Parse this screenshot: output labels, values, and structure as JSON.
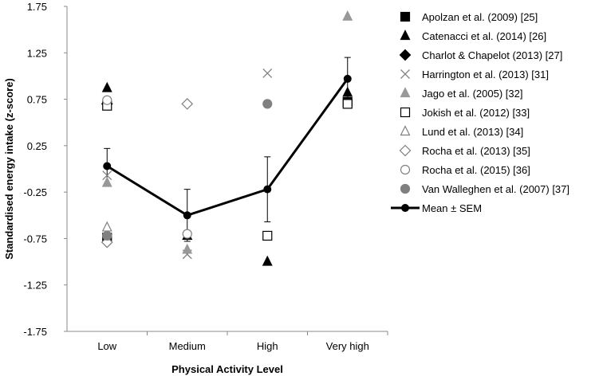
{
  "chart_data": {
    "type": "scatter",
    "xlabel": "Physical Activity Level",
    "ylabel": "Standardised energy intake (z-score)",
    "categories": [
      "Low",
      "Medium",
      "High",
      "Very high"
    ],
    "ylim": [
      -1.75,
      1.75
    ],
    "yticks": [
      1.75,
      1.25,
      0.75,
      0.25,
      -0.25,
      -0.75,
      -1.25,
      -1.75
    ],
    "ytick_labels": [
      "1.75",
      "1.25",
      "0.75",
      "0.25",
      "-0.25",
      "-0.75",
      "-1.25",
      "-1.75"
    ],
    "grid": false,
    "legend_position": "right",
    "series": [
      {
        "name": "Apolzan et al. (2009) [25]",
        "marker": "square-filled",
        "color": "#000000",
        "points": [
          {
            "x": "Low",
            "y": -0.74
          },
          {
            "x": "Very high",
            "y": 0.72
          }
        ]
      },
      {
        "name": "Catenacci et al. (2014) [26]",
        "marker": "triangle-filled",
        "color": "#000000",
        "points": [
          {
            "x": "Low",
            "y": 0.87
          },
          {
            "x": "Medium",
            "y": -0.72
          },
          {
            "x": "High",
            "y": -1.0
          },
          {
            "x": "Very high",
            "y": 0.82
          }
        ]
      },
      {
        "name": "Charlot & Chapelot (2013) [27]",
        "marker": "diamond-filled",
        "color": "#000000",
        "points": [
          {
            "x": "Low",
            "y": 0.7
          }
        ]
      },
      {
        "name": "Harrington et al. (2013) [31]",
        "marker": "x",
        "color": "#808080",
        "points": [
          {
            "x": "Low",
            "y": -0.07
          },
          {
            "x": "Medium",
            "y": -0.92
          },
          {
            "x": "High",
            "y": 1.03
          }
        ]
      },
      {
        "name": "Jago et al. (2005) [32]",
        "marker": "triangle-filled",
        "color": "#999999",
        "points": [
          {
            "x": "Low",
            "y": -0.15
          },
          {
            "x": "Medium",
            "y": -0.87
          },
          {
            "x": "Very high",
            "y": 1.64
          }
        ]
      },
      {
        "name": "Jokish et al. (2012) [33]",
        "marker": "square-open",
        "color": "#000000",
        "points": [
          {
            "x": "Low",
            "y": 0.68
          },
          {
            "x": "High",
            "y": -0.72
          },
          {
            "x": "Very high",
            "y": 0.7
          }
        ]
      },
      {
        "name": "Lund et al. (2013) [34]",
        "marker": "triangle-open",
        "color": "#808080",
        "points": [
          {
            "x": "Low",
            "y": -0.63
          }
        ]
      },
      {
        "name": "Rocha et al. (2013) [35]",
        "marker": "diamond-open",
        "color": "#808080",
        "points": [
          {
            "x": "Low",
            "y": -0.79
          },
          {
            "x": "Medium",
            "y": 0.7
          }
        ]
      },
      {
        "name": "Rocha et al. (2015) [36]",
        "marker": "circle-open",
        "color": "#808080",
        "points": [
          {
            "x": "Low",
            "y": 0.74
          },
          {
            "x": "Medium",
            "y": -0.7
          }
        ]
      },
      {
        "name": "Van Walleghen et al. (2007) [37]",
        "marker": "circle-filled",
        "color": "#808080",
        "points": [
          {
            "x": "Low",
            "y": -0.72
          },
          {
            "x": "High",
            "y": 0.7
          }
        ]
      }
    ],
    "mean_series": {
      "name": "Mean ± SEM",
      "marker": "circle-filled",
      "color": "#000000",
      "values": [
        0.03,
        -0.5,
        -0.22,
        0.97
      ],
      "sem": [
        0.19,
        0.28,
        0.35,
        0.23
      ]
    }
  }
}
